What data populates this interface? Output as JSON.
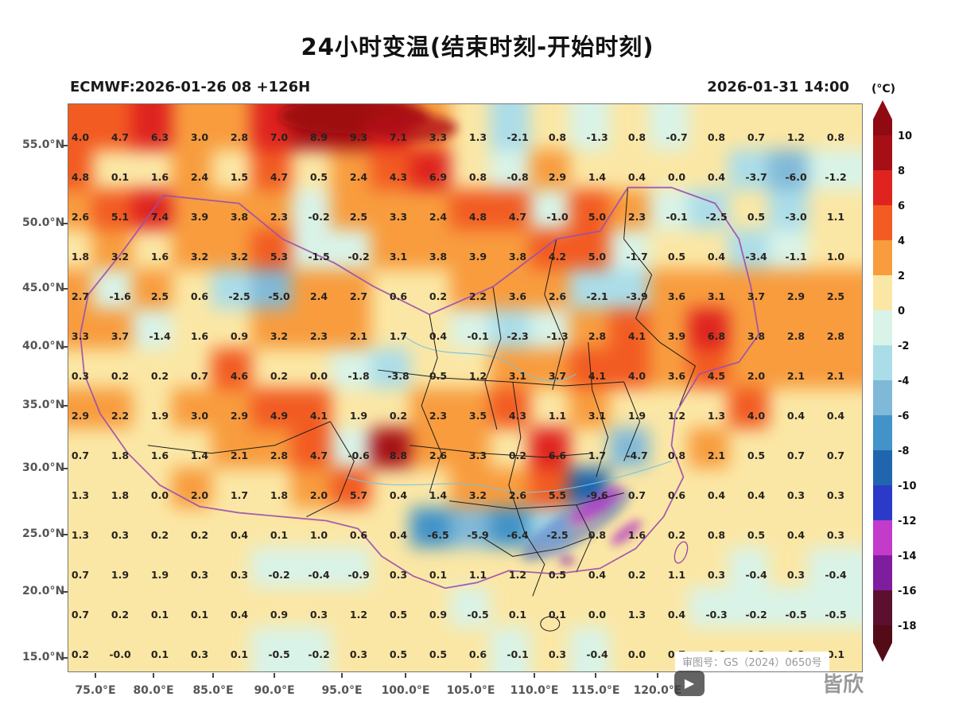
{
  "header": {
    "title": "24小时变温(结束时刻-开始时刻)",
    "model_run": "ECMWF:2026-01-26 08 +126H",
    "valid_time": "2026-01-31 14:00"
  },
  "axes": {
    "lat": [
      "55.0°N",
      "50.0°N",
      "45.0°N",
      "40.0°N",
      "35.0°N",
      "30.0°N",
      "25.0°N",
      "20.0°N",
      "15.0°N"
    ],
    "lon": [
      "75.0°E",
      "80.0°E",
      "85.0°E",
      "90.0°E",
      "95.0°E",
      "100.0°E",
      "105.0°E",
      "110.0°E",
      "115.0°E",
      "120.0°E"
    ]
  },
  "colorbar": {
    "unit_label": "(°C)",
    "ticks": [
      "10",
      "8",
      "6",
      "4",
      "2",
      "0",
      "-2",
      "-4",
      "-6",
      "-8",
      "-10",
      "-12",
      "-14",
      "-16",
      "-18"
    ],
    "over_color": "#8f0a12",
    "under_color": "#540b18",
    "band_colors": [
      "#a50f15",
      "#df231f",
      "#f25b22",
      "#f89c3e",
      "#fbe7a5",
      "#d9f3e8",
      "#abdde9",
      "#80b9d8",
      "#4193c9",
      "#1f66ae",
      "#2b3bc7",
      "#c23bcb",
      "#7e1d9e",
      "#5c1030"
    ]
  },
  "annotations": {
    "license": "审图号：GS（2024）0650号",
    "watermark": "皆欣"
  },
  "chart_data": {
    "type": "heatmap",
    "title": "24小时变温(结束时刻-开始时刻)",
    "model_run": "ECMWF:2026-01-26 08 +126H",
    "valid_time": "2026-01-31 14:00",
    "unit": "°C",
    "value_scale": {
      "min": -18,
      "max": 10,
      "step": 2
    },
    "lat_ticks": [
      "55.0°N",
      "50.0°N",
      "45.0°N",
      "40.0°N",
      "35.0°N",
      "30.0°N",
      "25.0°N",
      "20.0°N",
      "15.0°N"
    ],
    "lon_ticks": [
      "75.0°E",
      "80.0°E",
      "85.0°E",
      "90.0°E",
      "95.0°E",
      "100.0°E",
      "105.0°E",
      "110.0°E",
      "115.0°E",
      "120.0°E"
    ],
    "grid_values": [
      [
        "4.0",
        "4.7",
        "6.3",
        "3.0",
        "2.8",
        "7.0",
        "8.9",
        "9.3",
        "7.1",
        "3.3",
        "1.3",
        "-2.1",
        "0.8",
        "-1.3",
        "0.8",
        "-0.7",
        "0.8",
        "0.7",
        "1.2",
        "0.8"
      ],
      [
        "4.8",
        "0.1",
        "1.6",
        "2.4",
        "1.5",
        "4.7",
        "0.5",
        "2.4",
        "4.3",
        "6.9",
        "0.8",
        "-0.8",
        "2.9",
        "1.4",
        "0.4",
        "0.0",
        "0.4",
        "-3.7",
        "-6.0",
        "-1.2"
      ],
      [
        "2.6",
        "5.1",
        "7.4",
        "3.9",
        "3.8",
        "2.3",
        "-0.2",
        "2.5",
        "3.3",
        "2.4",
        "4.8",
        "4.7",
        "-1.0",
        "5.0",
        "2.3",
        "-0.1",
        "-2.5",
        "0.5",
        "-3.0",
        "1.1"
      ],
      [
        "1.8",
        "3.2",
        "1.6",
        "3.2",
        "3.2",
        "5.3",
        "-1.5",
        "-0.2",
        "3.1",
        "3.8",
        "3.9",
        "3.8",
        "4.2",
        "5.0",
        "-1.7",
        "0.5",
        "0.4",
        "-3.4",
        "-1.1",
        "1.0"
      ],
      [
        "2.7",
        "-1.6",
        "2.5",
        "0.6",
        "-2.5",
        "-5.0",
        "2.4",
        "2.7",
        "0.6",
        "0.2",
        "2.2",
        "3.6",
        "2.6",
        "-2.1",
        "-3.9",
        "3.6",
        "3.1",
        "3.7",
        "2.9",
        "2.5"
      ],
      [
        "3.3",
        "3.7",
        "-1.4",
        "1.6",
        "0.9",
        "3.2",
        "2.3",
        "2.1",
        "1.7",
        "0.4",
        "-0.1",
        "-2.3",
        "-1.3",
        "2.8",
        "4.1",
        "3.9",
        "6.8",
        "3.8",
        "2.8",
        "2.8"
      ],
      [
        "0.3",
        "0.2",
        "0.2",
        "0.7",
        "4.6",
        "0.2",
        "0.0",
        "-1.8",
        "-3.8",
        "0.5",
        "1.2",
        "3.1",
        "3.7",
        "4.1",
        "4.0",
        "3.6",
        "4.5",
        "2.0",
        "2.1",
        "2.1"
      ],
      [
        "2.9",
        "2.2",
        "1.9",
        "3.0",
        "2.9",
        "4.9",
        "4.1",
        "1.9",
        "0.2",
        "2.3",
        "3.5",
        "4.3",
        "1.1",
        "3.1",
        "1.9",
        "1.2",
        "1.3",
        "4.0",
        "0.4",
        "0.4"
      ],
      [
        "0.7",
        "1.8",
        "1.6",
        "1.4",
        "2.1",
        "2.8",
        "4.7",
        "-0.6",
        "8.8",
        "2.6",
        "3.3",
        "0.2",
        "6.6",
        "1.7",
        "-4.7",
        "0.8",
        "2.1",
        "0.5",
        "0.7",
        "0.7"
      ],
      [
        "1.3",
        "1.8",
        "0.0",
        "2.0",
        "1.7",
        "1.8",
        "2.0",
        "5.7",
        "0.4",
        "1.4",
        "3.2",
        "2.6",
        "5.5",
        "-9.6",
        "0.7",
        "0.6",
        "0.4",
        "0.4",
        "0.3",
        "0.3"
      ],
      [
        "1.3",
        "0.3",
        "0.2",
        "0.2",
        "0.4",
        "0.1",
        "1.0",
        "0.6",
        "0.4",
        "-6.5",
        "-5.9",
        "-6.4",
        "-2.5",
        "0.8",
        "1.6",
        "0.2",
        "0.8",
        "0.5",
        "0.4",
        "0.3"
      ],
      [
        "0.7",
        "1.9",
        "1.9",
        "0.3",
        "0.3",
        "-0.2",
        "-0.4",
        "-0.9",
        "0.3",
        "0.1",
        "1.1",
        "1.2",
        "0.5",
        "0.4",
        "0.2",
        "1.1",
        "0.3",
        "-0.4",
        "0.3",
        "-0.4"
      ],
      [
        "0.7",
        "0.2",
        "0.1",
        "0.1",
        "0.4",
        "0.9",
        "0.3",
        "1.2",
        "0.5",
        "0.9",
        "-0.5",
        "0.1",
        "0.1",
        "0.0",
        "1.3",
        "0.4",
        "-0.3",
        "-0.2",
        "-0.5",
        "-0.5"
      ],
      [
        "0.2",
        "-0.0",
        "0.1",
        "0.3",
        "0.1",
        "-0.5",
        "-0.2",
        "0.3",
        "0.5",
        "0.5",
        "0.6",
        "-0.1",
        "0.3",
        "-0.4",
        "0.0",
        "0.7",
        "0.6",
        "0.3",
        "0.2",
        "0.1"
      ]
    ]
  }
}
